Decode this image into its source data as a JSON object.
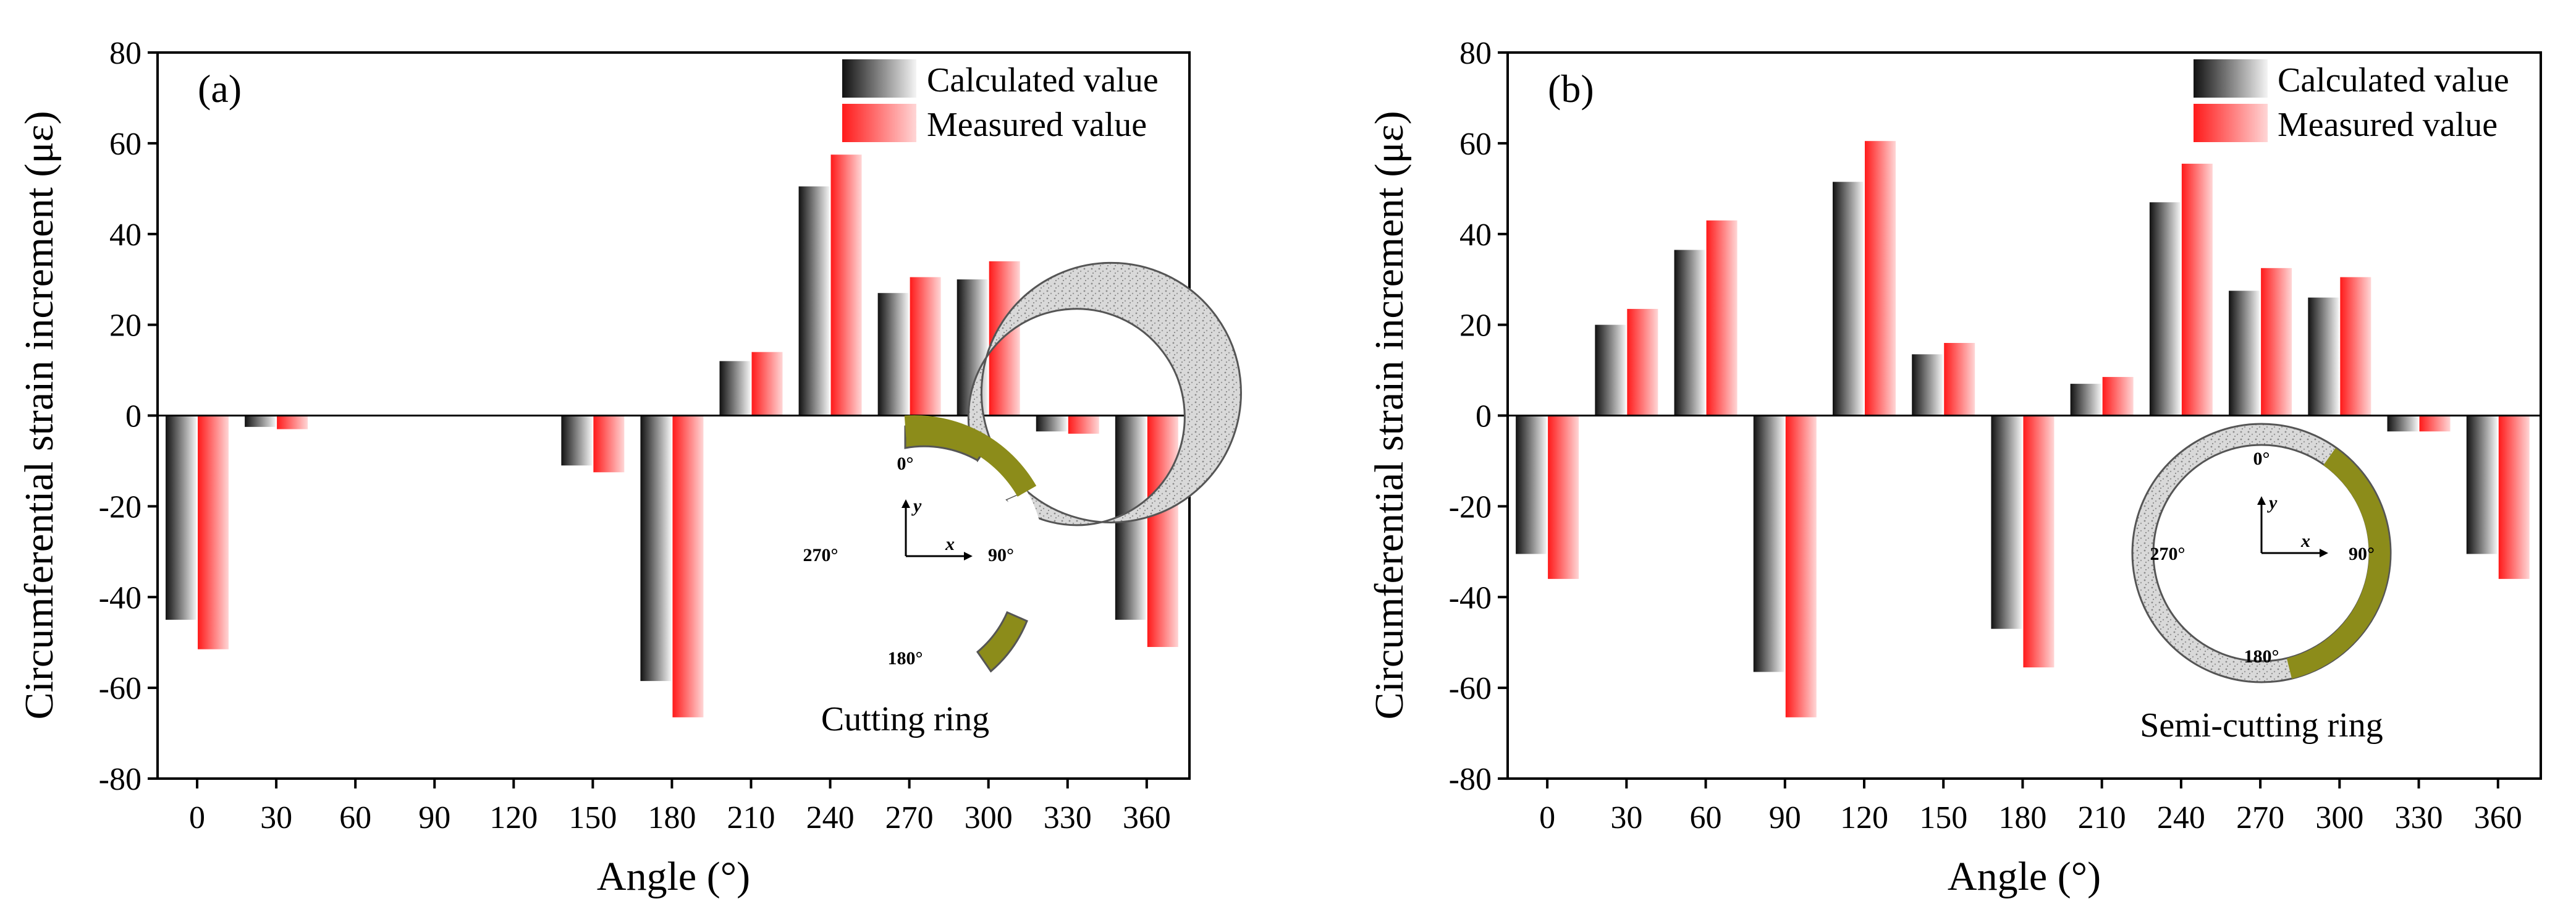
{
  "colors": {
    "calc_dark": "#111111",
    "calc_light": "#f4f4f4",
    "meas_dark": "#ff1a1a",
    "meas_light": "#ffd6d6",
    "ring_grey": "#cfcfcf",
    "ring_olive": "#8c8c1a"
  },
  "chart_data": [
    {
      "type": "bar",
      "panel_label": "(a)",
      "xlabel": "Angle (°)",
      "ylabel": "Circumferential strain increment (με)",
      "ylim": [
        -80,
        80
      ],
      "yticks": [
        "-80",
        "-60",
        "-40",
        "-20",
        "0",
        "20",
        "40",
        "60",
        "80"
      ],
      "categories": [
        "0",
        "30",
        "60",
        "90",
        "120",
        "150",
        "180",
        "210",
        "240",
        "270",
        "300",
        "330",
        "360"
      ],
      "series": [
        {
          "name": "Calculated value",
          "values": [
            -45,
            -2.5,
            0,
            0,
            0,
            -11,
            -58.5,
            12,
            50.5,
            27,
            30,
            -3.5,
            -45
          ]
        },
        {
          "name": "Measured value",
          "values": [
            -51.5,
            -3,
            0,
            0,
            0,
            -12.5,
            -66.5,
            14,
            57.5,
            30.5,
            34,
            -4,
            -51
          ]
        }
      ],
      "inset": {
        "name": "Cutting ring",
        "labels": [
          "0°",
          "90°",
          "180°",
          "270°"
        ],
        "axis_x": "x",
        "axis_y": "y"
      }
    },
    {
      "type": "bar",
      "panel_label": "(b)",
      "xlabel": "Angle (°)",
      "ylabel": "Circumferential strain increment (με)",
      "ylim": [
        -80,
        80
      ],
      "yticks": [
        "-80",
        "-60",
        "-40",
        "-20",
        "0",
        "20",
        "40",
        "60",
        "80"
      ],
      "categories": [
        "0",
        "30",
        "60",
        "90",
        "120",
        "150",
        "180",
        "210",
        "240",
        "270",
        "300",
        "330",
        "360"
      ],
      "series": [
        {
          "name": "Calculated value",
          "values": [
            -30.5,
            20,
            36.5,
            -56.5,
            51.5,
            13.5,
            -47,
            7,
            47,
            27.5,
            26,
            -3.5,
            -30.5
          ]
        },
        {
          "name": "Measured value",
          "values": [
            -36,
            23.5,
            43,
            -66.5,
            60.5,
            16,
            -55.5,
            8.5,
            55.5,
            32.5,
            30.5,
            -3.5,
            -36
          ]
        }
      ],
      "inset": {
        "name": "Semi-cutting ring",
        "labels": [
          "0°",
          "90°",
          "180°",
          "270°"
        ],
        "axis_x": "x",
        "axis_y": "y"
      }
    }
  ]
}
